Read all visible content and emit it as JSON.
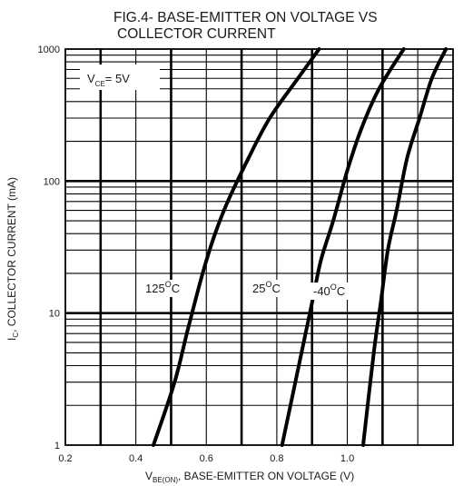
{
  "chart_data": {
    "type": "line",
    "title_lines": [
      "FIG.4- BASE-EMITTER ON VOLTAGE VS",
      "COLLECTOR CURRENT"
    ],
    "xlabel": {
      "main": "V",
      "sub": "BE(ON)",
      "rest": ", BASE-EMITTER ON VOLTAGE (V)"
    },
    "ylabel": {
      "main": "I",
      "sub": "C",
      "rest": ", COLLECTOR CURRENT (mA)"
    },
    "xlim": [
      0.2,
      1.3
    ],
    "ylim": [
      1,
      1000
    ],
    "yscale": "log",
    "x_ticks": [
      {
        "value": 0.2,
        "label": "0.2"
      },
      {
        "value": 0.4,
        "label": "0.4"
      },
      {
        "value": 0.6,
        "label": "0.6"
      },
      {
        "value": 0.8,
        "label": "0.8"
      },
      {
        "value": 1.0,
        "label": "1.0"
      }
    ],
    "y_ticks": [
      {
        "value": 1,
        "label": "1"
      },
      {
        "value": 10,
        "label": "10"
      },
      {
        "value": 100,
        "label": "100"
      },
      {
        "value": 1000,
        "label": "1000"
      }
    ],
    "grid": true,
    "annotation": {
      "main": "V",
      "sub": "CE",
      "rest": "= 5V"
    },
    "series": [
      {
        "name": "125°C",
        "label_main": "125",
        "label_unit": "C",
        "x": [
          0.45,
          0.51,
          0.55,
          0.6,
          0.65,
          0.72,
          0.78,
          0.86,
          0.92
        ],
        "y": [
          1,
          3,
          8,
          25,
          60,
          150,
          300,
          600,
          1000
        ]
      },
      {
        "name": "25°C",
        "label_main": "25",
        "label_unit": "C",
        "x": [
          0.815,
          0.87,
          0.9,
          0.925,
          0.96,
          1.0,
          1.04,
          1.09,
          1.16
        ],
        "y": [
          1,
          5,
          12,
          25,
          50,
          120,
          250,
          500,
          1000
        ]
      },
      {
        "name": "-40°C",
        "label_main": "-40",
        "label_unit": "C",
        "x": [
          1.045,
          1.075,
          1.095,
          1.115,
          1.14,
          1.17,
          1.205,
          1.24,
          1.28
        ],
        "y": [
          1,
          5,
          12,
          30,
          60,
          150,
          300,
          600,
          1000
        ]
      }
    ]
  }
}
